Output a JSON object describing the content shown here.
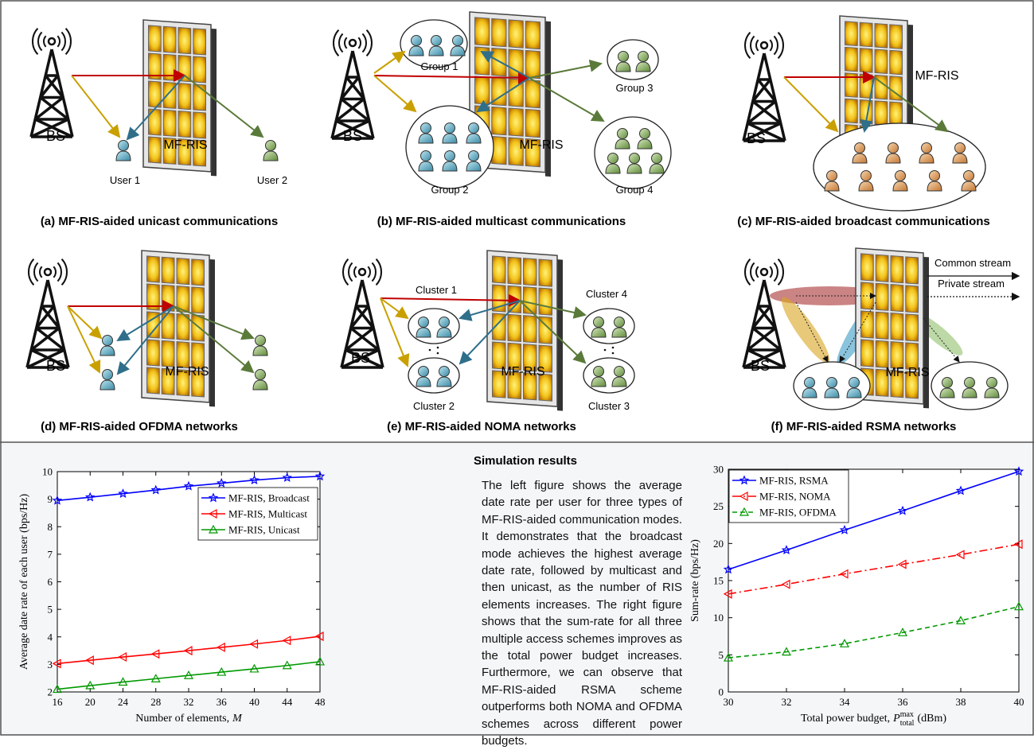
{
  "diagrams": [
    {
      "caption": "(a) MF-RIS-aided unicast communications",
      "labels": [
        "BS",
        "MF-RIS",
        "User 1",
        "User  2"
      ]
    },
    {
      "caption": "(b) MF-RIS-aided multicast communications",
      "labels": [
        "BS",
        "MF-RIS",
        "Group 1",
        "Group 2",
        "Group 3",
        "Group 4"
      ]
    },
    {
      "caption": "(c) MF-RIS-aided broadcast communications",
      "labels": [
        "BS",
        "MF-RIS"
      ]
    },
    {
      "caption": "(d) MF-RIS-aided OFDMA networks",
      "labels": [
        "BS",
        "MF-RIS"
      ]
    },
    {
      "caption": "(e) MF-RIS-aided NOMA networks",
      "labels": [
        "BS",
        "MF-RIS",
        "Cluster 1",
        "Cluster 2",
        "Cluster 3",
        "Cluster 4"
      ]
    },
    {
      "caption": "(f) MF-RIS-aided RSMA networks",
      "labels": [
        "BS",
        "MF-RIS",
        "Common stream",
        "Private stream"
      ]
    }
  ],
  "text": {
    "title": "Simulation results",
    "body": "The left figure shows the average date rate per user for three types of MF-RIS-aided communication modes. It demonstrates that the broadcast mode achieves the highest average date rate, followed by multicast and then unicast, as the number of RIS elements increases. The right figure shows that the sum-rate for all three multiple access schemes improves as the total power budget increases. Furthermore, we can observe that MF-RIS-aided RSMA scheme outperforms both NOMA and OFDMA schemes across different power budgets."
  },
  "chart_data": [
    {
      "type": "line",
      "xlabel": {
        "text": "Number of elements,",
        "symbol": "M"
      },
      "ylabel": "Average date rate of each user (bps/Hz)",
      "x": [
        16,
        20,
        24,
        28,
        32,
        36,
        40,
        44,
        48
      ],
      "xlim": [
        16,
        48
      ],
      "xticks": [
        16,
        20,
        24,
        28,
        32,
        36,
        40,
        44,
        48
      ],
      "ylim": [
        2,
        10
      ],
      "yticks": [
        2,
        3,
        4,
        5,
        6,
        7,
        8,
        9,
        10
      ],
      "legend": "upper right",
      "series": [
        {
          "name": "MF-RIS, Broadcast",
          "color": "#0000ff",
          "marker": "star",
          "dash": "solid",
          "values": [
            8.95,
            9.07,
            9.2,
            9.33,
            9.47,
            9.58,
            9.69,
            9.78,
            9.83
          ]
        },
        {
          "name": "MF-RIS, Multicast",
          "color": "#ff0000",
          "marker": "triangle-left",
          "dash": "solid",
          "values": [
            3.03,
            3.15,
            3.27,
            3.38,
            3.5,
            3.62,
            3.74,
            3.87,
            4.02
          ]
        },
        {
          "name": "MF-RIS, Unicast",
          "color": "#009900",
          "marker": "triangle-up",
          "dash": "solid",
          "values": [
            2.1,
            2.23,
            2.36,
            2.48,
            2.6,
            2.72,
            2.84,
            2.96,
            3.1
          ]
        }
      ]
    },
    {
      "type": "line",
      "xlabel": {
        "text": "Total power budget,",
        "symbol": "P",
        "sup": "max",
        "sub": "total",
        "unit": "(dBm)"
      },
      "ylabel": "Sum-rate (bps/Hz)",
      "x": [
        30,
        32,
        34,
        36,
        38,
        40
      ],
      "xlim": [
        30,
        40
      ],
      "xticks": [
        30,
        32,
        34,
        36,
        38,
        40
      ],
      "ylim": [
        0,
        30
      ],
      "yticks": [
        0,
        5,
        10,
        15,
        20,
        25,
        30
      ],
      "legend": "upper left",
      "series": [
        {
          "name": "MF-RIS, RSMA",
          "color": "#0000ff",
          "marker": "star",
          "dash": "solid",
          "values": [
            16.5,
            19.1,
            21.8,
            24.4,
            27.1,
            29.7
          ]
        },
        {
          "name": "MF-RIS, NOMA",
          "color": "#ff0000",
          "marker": "triangle-left",
          "dash": "dashdot",
          "values": [
            13.2,
            14.5,
            15.9,
            17.2,
            18.5,
            19.9
          ]
        },
        {
          "name": "MF-RIS, OFDMA",
          "color": "#009900",
          "marker": "triangle-up",
          "dash": "dashed",
          "values": [
            4.6,
            5.4,
            6.5,
            8.0,
            9.6,
            11.5
          ]
        }
      ]
    }
  ]
}
